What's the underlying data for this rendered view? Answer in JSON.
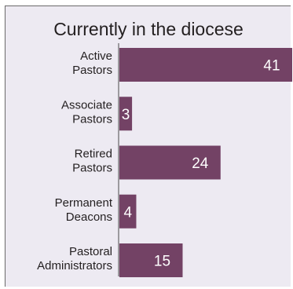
{
  "title": "Currently in the diocese",
  "colors": {
    "bar": "#734265",
    "panel": "#edeaf2",
    "label": "#231f20",
    "value": "#ffffff"
  },
  "chart_data": {
    "type": "bar",
    "orientation": "horizontal",
    "title": "Currently in the diocese",
    "categories": [
      [
        "Active",
        "Pastors"
      ],
      [
        "Associate",
        "Pastors"
      ],
      [
        "Retired",
        "Pastors"
      ],
      [
        "Permanent",
        "Deacons"
      ],
      [
        "Pastoral",
        "Administrators"
      ]
    ],
    "values": [
      41,
      3,
      24,
      4,
      15
    ],
    "xlim": [
      0,
      41
    ],
    "grid": false,
    "legend": "none"
  }
}
